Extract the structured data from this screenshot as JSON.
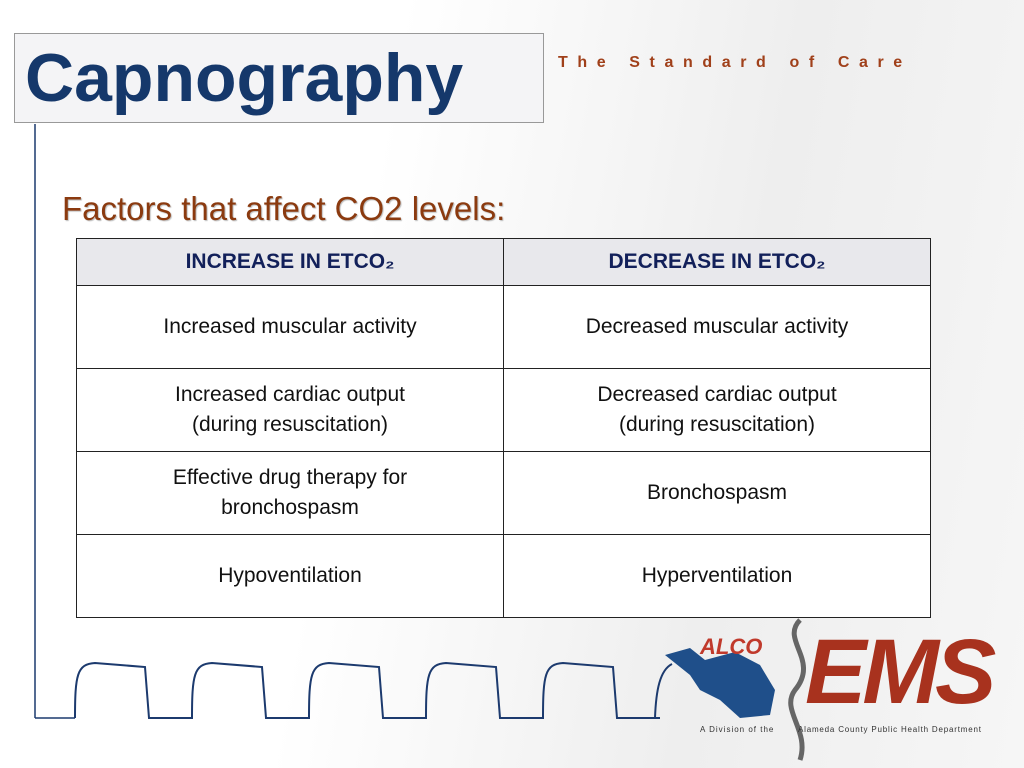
{
  "header": {
    "title": "Capnography",
    "tagline": "The Standard of Care"
  },
  "subtitle": "Factors that affect CO2 levels:",
  "table": {
    "headers": [
      "INCREASE IN ETCO₂",
      "DECREASE IN ETCO₂"
    ],
    "rows": [
      [
        "Increased muscular activity",
        "Decreased muscular activity"
      ],
      [
        "Increased cardiac output\n(during resuscitation)",
        "Decreased cardiac output\n(during resuscitation)"
      ],
      [
        "Effective drug therapy for\nbronchospasm",
        "Bronchospasm"
      ],
      [
        "Hypoventilation",
        "Hyperventilation"
      ]
    ]
  },
  "logo": {
    "alco": "ALCO",
    "ems": "EMS",
    "division": "A Division of the",
    "department": "Alameda County Public Health Department"
  }
}
